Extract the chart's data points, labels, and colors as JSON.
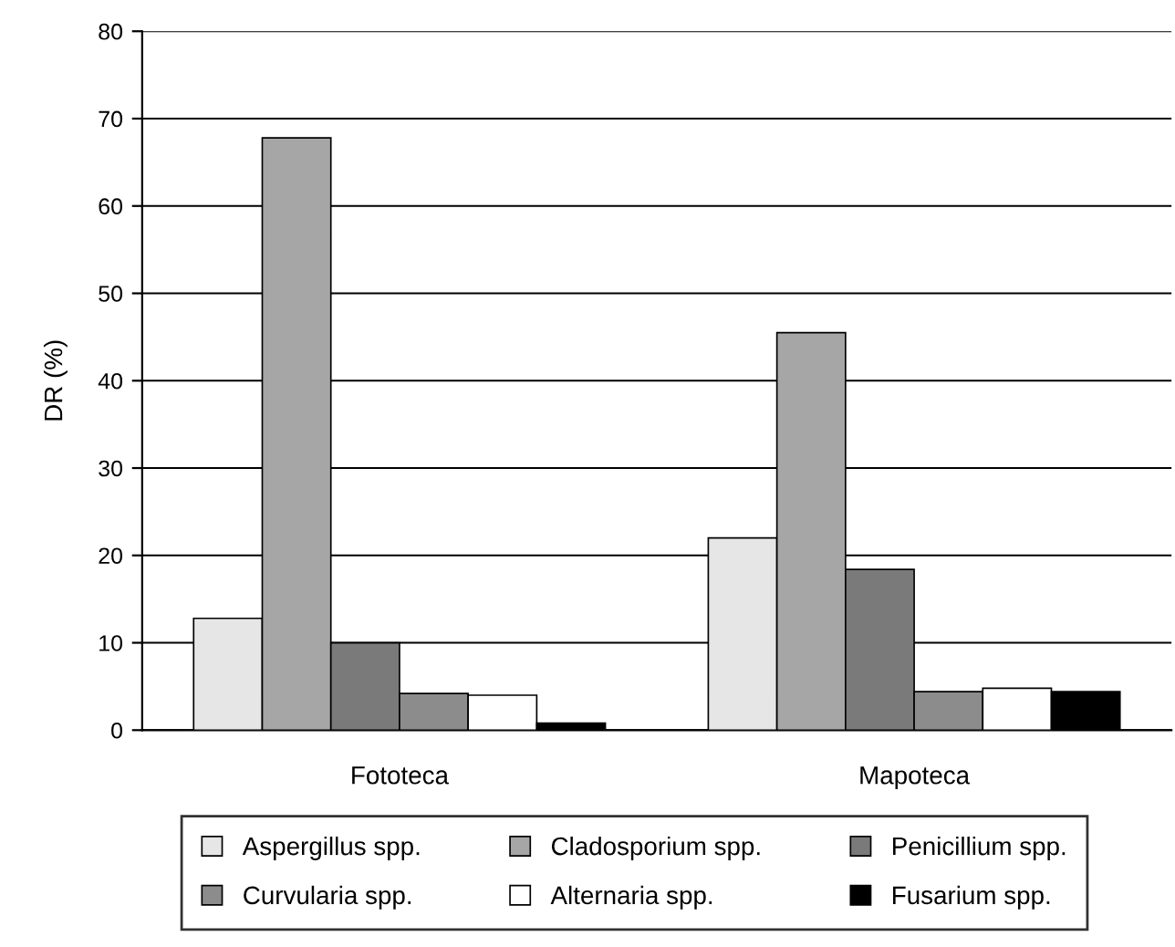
{
  "chart_data": {
    "type": "bar",
    "ylabel": "DR (%)",
    "categories": [
      "Fototeca",
      "Mapoteca"
    ],
    "series": [
      {
        "name": "Aspergillus spp.",
        "color": "#e6e6e6",
        "values": [
          12.8,
          22.0
        ]
      },
      {
        "name": "Cladosporium spp.",
        "color": "#a6a6a6",
        "values": [
          67.8,
          45.5
        ]
      },
      {
        "name": "Penicillium spp.",
        "color": "#7a7a7a",
        "values": [
          10.0,
          18.4
        ]
      },
      {
        "name": "Curvularia spp.",
        "color": "#8c8c8c",
        "values": [
          4.2,
          4.4
        ]
      },
      {
        "name": "Alternaria spp.",
        "color": "#ffffff",
        "values": [
          4.0,
          4.8
        ]
      },
      {
        "name": "Fusarium spp.",
        "color": "#000000",
        "values": [
          0.8,
          4.4
        ]
      }
    ],
    "ylim": [
      0,
      80
    ],
    "yticks": [
      0,
      10,
      20,
      30,
      40,
      50,
      60,
      70,
      80
    ],
    "grid": "y",
    "legend": "bottom"
  }
}
